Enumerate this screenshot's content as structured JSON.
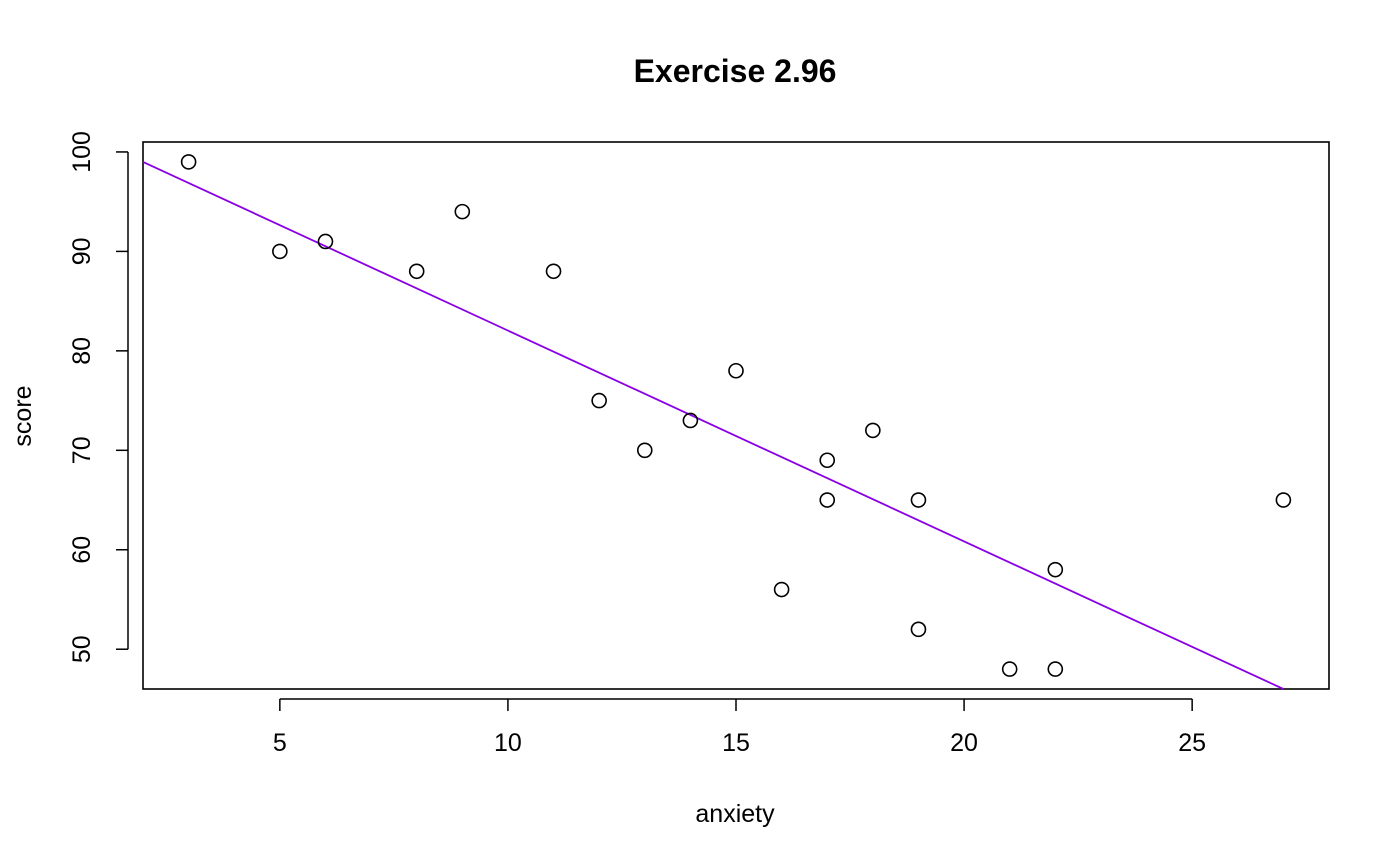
{
  "chart_data": {
    "type": "scatter",
    "title": "Exercise 2.96",
    "xlabel": "anxiety",
    "ylabel": "score",
    "xlim": [
      2,
      28
    ],
    "ylim": [
      46,
      101
    ],
    "xticks": [
      5,
      10,
      15,
      20,
      25
    ],
    "yticks": [
      50,
      60,
      70,
      80,
      90,
      100
    ],
    "points": [
      {
        "x": 3,
        "y": 99
      },
      {
        "x": 5,
        "y": 90
      },
      {
        "x": 6,
        "y": 91
      },
      {
        "x": 8,
        "y": 88
      },
      {
        "x": 9,
        "y": 94
      },
      {
        "x": 11,
        "y": 88
      },
      {
        "x": 12,
        "y": 75
      },
      {
        "x": 13,
        "y": 70
      },
      {
        "x": 14,
        "y": 73
      },
      {
        "x": 15,
        "y": 78
      },
      {
        "x": 16,
        "y": 56
      },
      {
        "x": 17,
        "y": 69
      },
      {
        "x": 17,
        "y": 65
      },
      {
        "x": 18,
        "y": 72
      },
      {
        "x": 19,
        "y": 65
      },
      {
        "x": 19,
        "y": 52
      },
      {
        "x": 21,
        "y": 48
      },
      {
        "x": 22,
        "y": 58
      },
      {
        "x": 22,
        "y": 48
      },
      {
        "x": 27,
        "y": 65
      }
    ],
    "fit_line": {
      "x_start": 2,
      "y_start": 99.0,
      "x_end": 27,
      "y_end": 46.0,
      "color": "#8a00e6"
    },
    "grid": false
  }
}
